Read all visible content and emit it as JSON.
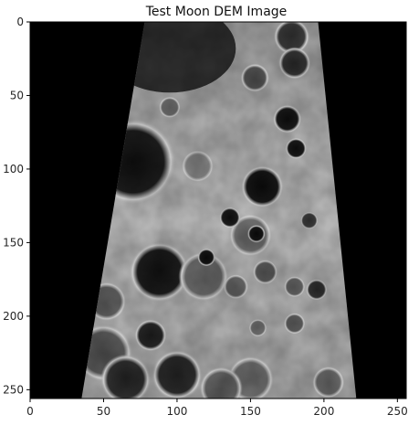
{
  "chart_data": {
    "type": "heatmap",
    "title": "Test Moon DEM Image",
    "xlabel": "",
    "ylabel": "",
    "colormap": "gray",
    "background_color": "#000000",
    "image_size": [
      256,
      256
    ],
    "xlim": [
      0,
      256
    ],
    "ylim": [
      256,
      0
    ],
    "x_ticks": [
      0,
      50,
      100,
      150,
      200,
      250
    ],
    "y_ticks": [
      0,
      50,
      100,
      150,
      200,
      250
    ],
    "x_tick_labels": [
      "0",
      "50",
      "100",
      "150",
      "200",
      "250"
    ],
    "y_tick_labels": [
      "0",
      "50",
      "100",
      "150",
      "200",
      "250"
    ],
    "grid": false,
    "valid_region_polygon": [
      [
        78,
        0
      ],
      [
        196,
        0
      ],
      [
        222,
        256
      ],
      [
        35,
        256
      ]
    ],
    "base_surface_value": 0.66,
    "craters": [
      {
        "x": 70,
        "y": 95,
        "r": 24,
        "floor": 0.06
      },
      {
        "x": 88,
        "y": 170,
        "r": 17,
        "floor": 0.06
      },
      {
        "x": 158,
        "y": 112,
        "r": 12,
        "floor": 0.04
      },
      {
        "x": 175,
        "y": 66,
        "r": 8,
        "floor": 0.05
      },
      {
        "x": 118,
        "y": 173,
        "r": 14,
        "floor": 0.36
      },
      {
        "x": 150,
        "y": 145,
        "r": 12,
        "floor": 0.4
      },
      {
        "x": 50,
        "y": 225,
        "r": 16,
        "floor": 0.3
      },
      {
        "x": 82,
        "y": 213,
        "r": 9,
        "floor": 0.1
      },
      {
        "x": 100,
        "y": 240,
        "r": 14,
        "floor": 0.12
      },
      {
        "x": 65,
        "y": 243,
        "r": 14,
        "floor": 0.14
      },
      {
        "x": 150,
        "y": 243,
        "r": 13,
        "floor": 0.38
      },
      {
        "x": 130,
        "y": 249,
        "r": 12,
        "floor": 0.34
      },
      {
        "x": 52,
        "y": 190,
        "r": 11,
        "floor": 0.32
      },
      {
        "x": 114,
        "y": 98,
        "r": 9,
        "floor": 0.48
      },
      {
        "x": 181,
        "y": 86,
        "r": 6,
        "floor": 0.05
      },
      {
        "x": 136,
        "y": 133,
        "r": 6,
        "floor": 0.06
      },
      {
        "x": 154,
        "y": 144,
        "r": 5,
        "floor": 0.04
      },
      {
        "x": 120,
        "y": 160,
        "r": 5,
        "floor": 0.04
      },
      {
        "x": 160,
        "y": 170,
        "r": 7,
        "floor": 0.3
      },
      {
        "x": 178,
        "y": 10,
        "r": 10,
        "floor": 0.18
      },
      {
        "x": 180,
        "y": 28,
        "r": 9,
        "floor": 0.16
      },
      {
        "x": 153,
        "y": 38,
        "r": 8,
        "floor": 0.28
      },
      {
        "x": 195,
        "y": 182,
        "r": 6,
        "floor": 0.15
      },
      {
        "x": 203,
        "y": 245,
        "r": 9,
        "floor": 0.36
      },
      {
        "x": 140,
        "y": 180,
        "r": 7,
        "floor": 0.34
      },
      {
        "x": 180,
        "y": 205,
        "r": 6,
        "floor": 0.3
      },
      {
        "x": 180,
        "y": 180,
        "r": 6,
        "floor": 0.33
      },
      {
        "x": 190,
        "y": 135,
        "r": 5,
        "floor": 0.2
      },
      {
        "x": 155,
        "y": 208,
        "r": 5,
        "floor": 0.38
      },
      {
        "x": 95,
        "y": 58,
        "r": 6,
        "floor": 0.36
      }
    ]
  }
}
